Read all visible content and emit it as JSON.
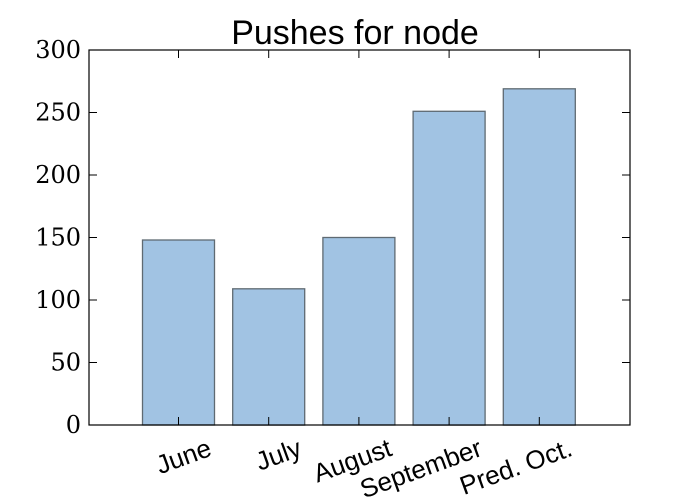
{
  "chart_data": {
    "type": "bar",
    "title": "Pushes for node",
    "xlabel": "",
    "ylabel": "",
    "categories": [
      "June",
      "July",
      "August",
      "September",
      "Pred. Oct."
    ],
    "values": [
      148,
      109,
      150,
      251,
      269
    ],
    "ylim": [
      0,
      300
    ],
    "yticks": [
      0,
      50,
      100,
      150,
      200,
      250,
      300
    ],
    "xtick_rotation": 20,
    "bar_color": "#a1c3e3",
    "bar_edge_color": "#5f6a72",
    "grid": false,
    "legend": "none"
  }
}
